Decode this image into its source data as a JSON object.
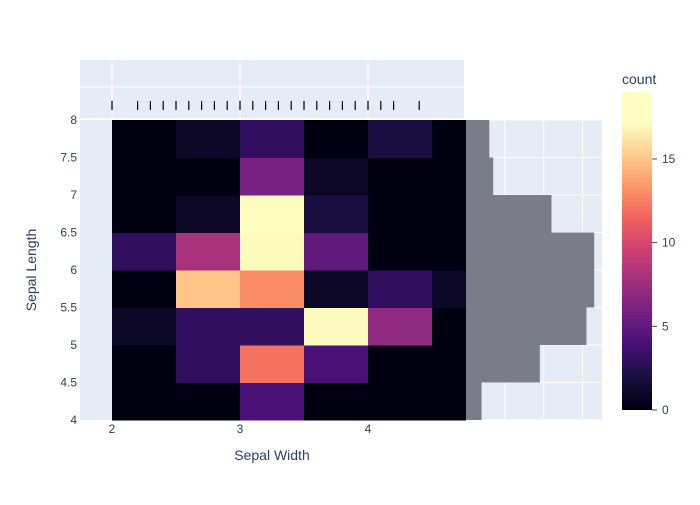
{
  "chart_data": {
    "type": "heatmap",
    "title": "",
    "xlabel": "Sepal Width",
    "ylabel": "Sepal Length",
    "xlim": [
      1.75,
      4.75
    ],
    "ylim": [
      4,
      8
    ],
    "x_bins": [
      2.0,
      2.5,
      3.0,
      3.5,
      4.0,
      4.5
    ],
    "y_bins": [
      4.0,
      4.5,
      5.0,
      5.5,
      6.0,
      6.5,
      7.0,
      7.5
    ],
    "x_bin_width": 0.5,
    "y_bin_width": 0.5,
    "counts": [
      [
        0,
        0,
        4,
        0,
        0,
        0
      ],
      [
        0,
        3,
        12,
        4,
        0,
        0
      ],
      [
        1,
        3,
        3,
        17,
        7,
        0
      ],
      [
        0,
        15,
        13,
        1,
        3,
        1
      ],
      [
        3,
        8,
        17,
        5,
        0,
        0
      ],
      [
        0,
        1,
        19,
        2,
        0,
        0
      ],
      [
        0,
        0,
        6,
        1,
        0,
        0
      ],
      [
        0,
        1,
        3,
        0,
        2,
        0
      ]
    ],
    "x_ticks": [
      {
        "value": 2,
        "label": "2"
      },
      {
        "value": 3,
        "label": "3"
      },
      {
        "value": 4,
        "label": "4"
      }
    ],
    "y_ticks": [
      {
        "value": 4,
        "label": "4"
      },
      {
        "value": 4.5,
        "label": "4.5"
      },
      {
        "value": 5,
        "label": "5"
      },
      {
        "value": 5.5,
        "label": "5.5"
      },
      {
        "value": 6,
        "label": "6"
      },
      {
        "value": 6.5,
        "label": "6.5"
      },
      {
        "value": 7,
        "label": "7"
      },
      {
        "value": 7.5,
        "label": "7.5"
      },
      {
        "value": 8,
        "label": "8"
      }
    ],
    "marginal_x": {
      "type": "rug",
      "values": [
        2.0,
        2.2,
        2.3,
        2.4,
        2.5,
        2.6,
        2.7,
        2.8,
        2.9,
        3.0,
        3.1,
        3.2,
        3.3,
        3.4,
        3.5,
        3.6,
        3.7,
        3.8,
        3.9,
        4.0,
        4.1,
        4.2,
        4.4
      ]
    },
    "marginal_y": {
      "type": "histogram",
      "bins": [
        4.0,
        4.5,
        5.0,
        5.5,
        6.0,
        6.5,
        7.0,
        7.5
      ],
      "bin_width": 0.5,
      "counts": [
        4,
        19,
        31,
        33,
        33,
        22,
        7,
        6
      ],
      "xlim": [
        0,
        35
      ],
      "grid_values": [
        10,
        20,
        30
      ]
    },
    "colorbar": {
      "title": "count",
      "range": [
        0,
        19
      ],
      "ticks": [
        {
          "value": 0,
          "label": "0"
        },
        {
          "value": 5,
          "label": "5"
        },
        {
          "value": 10,
          "label": "10"
        },
        {
          "value": 15,
          "label": "15"
        }
      ],
      "colorscale": [
        [
          0.0,
          "#000011"
        ],
        [
          0.1,
          "#180f3d"
        ],
        [
          0.2,
          "#440f76"
        ],
        [
          0.3,
          "#721f81"
        ],
        [
          0.4,
          "#9e2f7f"
        ],
        [
          0.5,
          "#cd4071"
        ],
        [
          0.6,
          "#f1605d"
        ],
        [
          0.7,
          "#fd9668"
        ],
        [
          0.8,
          "#feca8d"
        ],
        [
          0.9,
          "#fcfdbf"
        ],
        [
          1.0,
          "#fcfdbf"
        ]
      ]
    },
    "colors": {
      "marginal_bar": "#7a7c87",
      "grid_background": "#e5ecf6",
      "rug_tick": "#000000"
    },
    "grid": true,
    "legend": "colorbar-right"
  }
}
